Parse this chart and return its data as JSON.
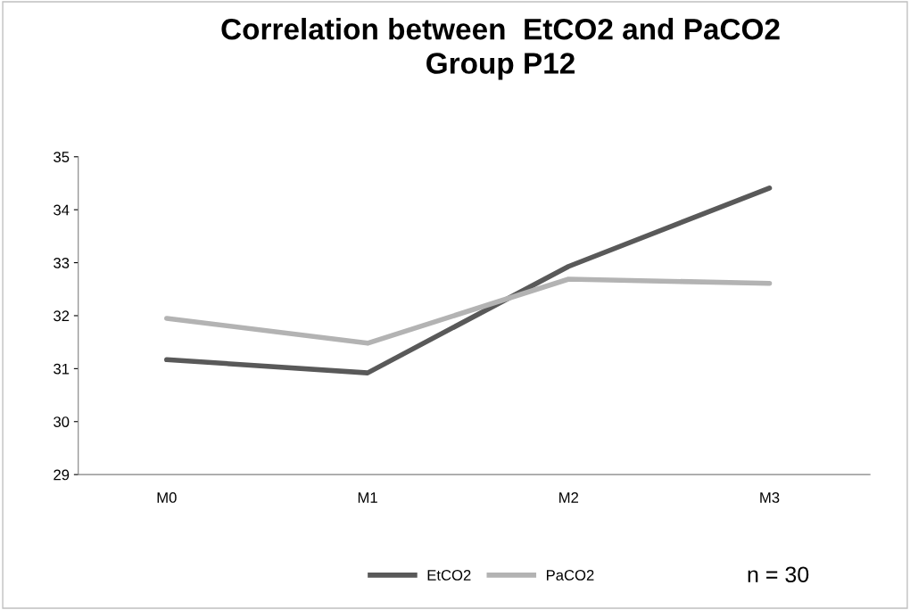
{
  "chart_data": {
    "type": "line",
    "title": "Correlation between  EtCO2 and PaCO2\nGroup P12",
    "categories": [
      "M0",
      "M1",
      "M2",
      "M3"
    ],
    "series": [
      {
        "name": "EtCO2",
        "color": "#595959",
        "values": [
          31.17,
          30.92,
          32.93,
          34.41
        ]
      },
      {
        "name": "PaCO2",
        "color": "#b3b3b3",
        "values": [
          31.95,
          31.48,
          32.69,
          32.61
        ]
      }
    ],
    "ylim": [
      29,
      35
    ],
    "yticks": [
      29,
      30,
      31,
      32,
      33,
      34,
      35
    ],
    "grid": false,
    "legend": "bottom",
    "marker": "none",
    "line_style": "solid",
    "annotations": [
      "n = 30"
    ]
  }
}
